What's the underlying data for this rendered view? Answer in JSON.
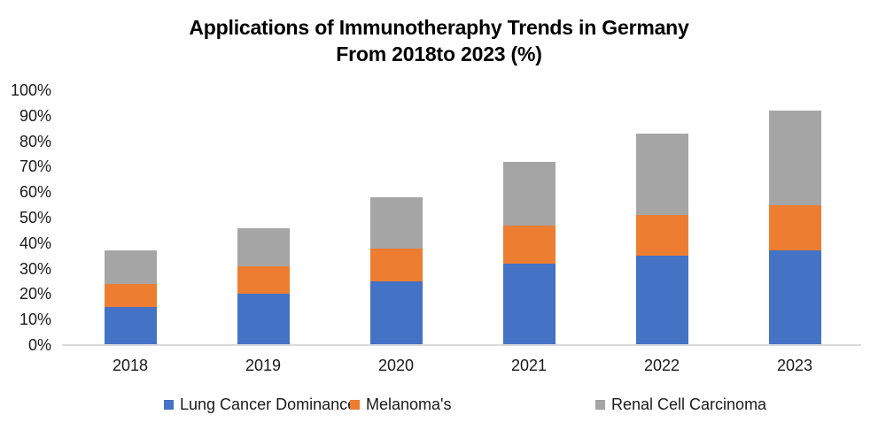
{
  "title": {
    "line1": "Applications of Immunotheraphy Trends in Germany",
    "line2": "From 2018to 2023 (%)"
  },
  "chart_data": {
    "type": "bar",
    "stacked": true,
    "title": "Applications of Immunotheraphy Trends in Germany From 2018to 2023 (%)",
    "categories": [
      "2018",
      "2019",
      "2020",
      "2021",
      "2022",
      "2023"
    ],
    "series": [
      {
        "name": "Lung Cancer Dominance",
        "color": "#4472C4",
        "values": [
          15,
          20,
          25,
          32,
          35,
          37
        ]
      },
      {
        "name": "Melanoma's",
        "color": "#ED7D31",
        "values": [
          9,
          11,
          13,
          15,
          16,
          18
        ]
      },
      {
        "name": "Renal Cell Carcinoma",
        "color": "#A5A5A5",
        "values": [
          13,
          15,
          20,
          25,
          32,
          37
        ]
      }
    ],
    "stack_totals": [
      37,
      46,
      58,
      72,
      83,
      92
    ],
    "xlabel": "",
    "ylabel": "",
    "ylim": [
      0,
      100
    ],
    "ytick_step": 10,
    "ytick_labels": [
      "0%",
      "10%",
      "20%",
      "30%",
      "40%",
      "50%",
      "60%",
      "70%",
      "80%",
      "90%",
      "100%"
    ],
    "grid": false,
    "legend_position": "bottom",
    "axis_line_color": "#D9D9D9",
    "background_color": "#FFFFFF"
  }
}
